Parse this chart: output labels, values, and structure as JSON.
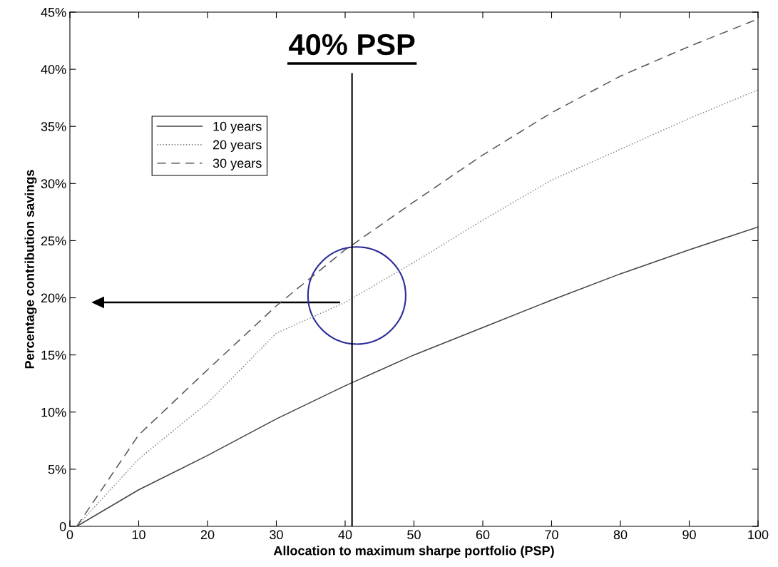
{
  "chart_data": {
    "type": "line",
    "xlabel": "Allocation to maximum sharpe portfolio (PSP)",
    "ylabel": "Percentage contribution savings",
    "x": [
      1,
      10,
      20,
      30,
      40,
      50,
      60,
      70,
      80,
      90,
      100
    ],
    "series": [
      {
        "name": "10 years",
        "color": "#444444",
        "line_style": "solid",
        "values": [
          0,
          3.2,
          6.2,
          9.4,
          12.3,
          15.0,
          17.4,
          19.8,
          22.1,
          24.2,
          26.2
        ]
      },
      {
        "name": "20 years",
        "color": "#888888",
        "line_style": "dotted",
        "values": [
          0,
          5.9,
          10.8,
          16.9,
          19.6,
          23.1,
          26.8,
          30.3,
          33.0,
          35.7,
          38.2
        ]
      },
      {
        "name": "30 years",
        "color": "#555555",
        "line_style": "dashed",
        "values": [
          0,
          8.0,
          13.7,
          19.3,
          24.2,
          28.4,
          32.5,
          36.2,
          39.4,
          42.0,
          44.4
        ]
      }
    ],
    "xlim": [
      0,
      100
    ],
    "xticks": [
      0,
      10,
      20,
      30,
      40,
      50,
      60,
      70,
      80,
      90,
      100
    ],
    "ylim": [
      0,
      45
    ],
    "yticks": [
      {
        "value": 0,
        "label": "0"
      },
      {
        "value": 5,
        "label": "5%"
      },
      {
        "value": 10,
        "label": "10%"
      },
      {
        "value": 15,
        "label": "15%"
      },
      {
        "value": 20,
        "label": "20%"
      },
      {
        "value": 25,
        "label": "25%"
      },
      {
        "value": 30,
        "label": "30%"
      },
      {
        "value": 35,
        "label": "35%"
      },
      {
        "value": 40,
        "label": "40%"
      },
      {
        "value": 45,
        "label": "45%"
      }
    ],
    "ref_lines": [
      {
        "axis": "x",
        "value": 41,
        "label": "40% PSP",
        "color": "#000000"
      }
    ],
    "grid": false,
    "legend": "top left",
    "marker": "none"
  }
}
